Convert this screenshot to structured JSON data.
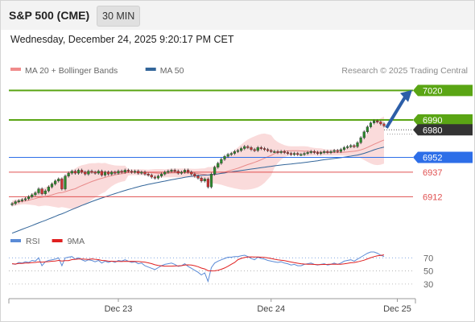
{
  "header": {
    "title": "S&P 500 (CME)",
    "timeframe": "30 MIN"
  },
  "datetime": "Wednesday, December 24, 2025 9:20:17 PM CET",
  "colors": {
    "accent_green": "#5aa514",
    "blue_level": "#2d6ee8",
    "red_level": "#e05050",
    "bollinger": "#f4b0b0",
    "ma50": "#33669a",
    "candle_up": "#2b8a2b",
    "candle_down": "#d03030",
    "rsi": "#5b8bd6",
    "rsi_ma": "#e02020",
    "forecast_arrow": "#2c5ea8"
  },
  "chart_data": [
    {
      "type": "candlestick",
      "legend": [
        {
          "name": "MA 20 + Bollinger Bands",
          "color": "#f08b8b"
        },
        {
          "name": "MA 50",
          "color": "#33669a"
        }
      ],
      "legend_placement": "top-left",
      "watermark": "Research © 2025 Trading Central",
      "y_range": [
        6878,
        7026
      ],
      "x_ticks": [
        {
          "label": "Dec 23",
          "index": 32
        },
        {
          "label": "Dec 24",
          "index": 78
        },
        {
          "label": "Dec 25",
          "index": 116
        }
      ],
      "levels": [
        {
          "value": 7020,
          "label": "7020",
          "kind": "resistance",
          "color": "#5aa514",
          "filled": true
        },
        {
          "value": 6990,
          "label": "6990",
          "kind": "resistance",
          "color": "#5aa514",
          "filled": true
        },
        {
          "value": 6980,
          "label": "6980",
          "kind": "last price",
          "color": "#333333",
          "filled": true
        },
        {
          "value": 6952,
          "label": "6952",
          "kind": "pivot",
          "color": "#2d6ee8",
          "filled": true
        },
        {
          "value": 6937,
          "label": "6937",
          "kind": "support",
          "color": "#e05050",
          "filled": false
        },
        {
          "value": 6912,
          "label": "6912",
          "kind": "support",
          "color": "#e05050",
          "filled": false
        }
      ],
      "forecast": {
        "from": 6982,
        "to": 7018
      },
      "close": [
        6905,
        6907,
        6908,
        6909,
        6910,
        6912,
        6914,
        6916,
        6920,
        6915,
        6918,
        6922,
        6925,
        6928,
        6930,
        6920,
        6933,
        6936,
        6938,
        6936,
        6939,
        6937,
        6935,
        6938,
        6937,
        6936,
        6938,
        6934,
        6937,
        6935,
        6937,
        6936,
        6938,
        6937,
        6939,
        6938,
        6937,
        6938,
        6936,
        6937,
        6935,
        6934,
        6932,
        6931,
        6933,
        6935,
        6937,
        6938,
        6939,
        6938,
        6936,
        6937,
        6939,
        6937,
        6935,
        6933,
        6931,
        6928,
        6930,
        6922,
        6935,
        6942,
        6946,
        6950,
        6953,
        6955,
        6956,
        6958,
        6959,
        6961,
        6963,
        6962,
        6960,
        6959,
        6962,
        6961,
        6960,
        6959,
        6958,
        6958,
        6957,
        6958,
        6957,
        6956,
        6955,
        6956,
        6955,
        6955,
        6956,
        6957,
        6958,
        6957,
        6956,
        6957,
        6958,
        6957,
        6958,
        6959,
        6958,
        6960,
        6962,
        6963,
        6964,
        6963,
        6967,
        6972,
        6978,
        6983,
        6987,
        6989,
        6988,
        6986,
        6984
      ]
    },
    {
      "type": "line",
      "title": "RSI",
      "legend": [
        {
          "name": "RSI",
          "color": "#5b8bd6"
        },
        {
          "name": "9MA",
          "color": "#e02020"
        }
      ],
      "y_ticks": [
        70,
        50,
        30
      ],
      "y_range": [
        20,
        90
      ],
      "rsi": [
        61,
        60,
        63,
        62,
        64,
        63,
        66,
        65,
        70,
        58,
        64,
        66,
        67,
        68,
        70,
        58,
        70,
        71,
        72,
        68,
        70,
        67,
        65,
        67,
        66,
        64,
        66,
        62,
        65,
        63,
        65,
        63,
        66,
        65,
        67,
        65,
        63,
        64,
        61,
        62,
        58,
        56,
        54,
        52,
        55,
        58,
        60,
        61,
        62,
        60,
        57,
        58,
        61,
        57,
        54,
        51,
        48,
        44,
        47,
        34,
        55,
        62,
        65,
        67,
        69,
        71,
        71,
        72,
        72,
        73,
        74,
        72,
        69,
        67,
        71,
        69,
        68,
        66,
        65,
        64,
        63,
        64,
        62,
        61,
        59,
        60,
        58,
        58,
        60,
        61,
        62,
        60,
        59,
        60,
        61,
        59,
        60,
        62,
        60,
        62,
        65,
        66,
        67,
        65,
        68,
        71,
        74,
        77,
        79,
        79,
        77,
        74,
        72
      ]
    }
  ]
}
